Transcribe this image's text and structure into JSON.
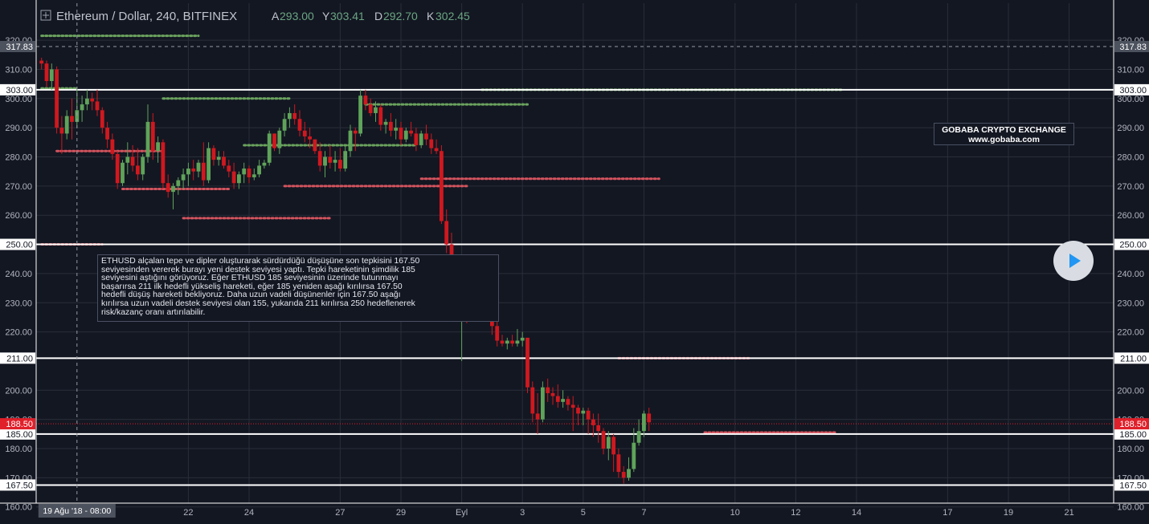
{
  "header": {
    "symbol": "Ethereum / Dollar, 240, BITFINEX",
    "open_label": "A",
    "open_value": "293.00",
    "high_label": "Y",
    "high_value": "303.41",
    "low_label": "D",
    "low_value": "292.70",
    "close_label": "K",
    "close_value": "302.45",
    "icon": "expand-plus-icon"
  },
  "annotation": {
    "text": "ETHUSD alçalan tepe ve dipler oluşturarak sürdürdüğü düşüşüne son tepkisini 167.50\nseviyesinden vererek burayı yeni destek seviyesi yaptı. Tepki hareketinin şimdilik 185\nseviyesini aştığını görüyoruz. Eğer ETHUSD 185 seviyesinin üzerinde tutunmayı\nbaşarırsa 211 ilk hedefli yükseliş hareketi, eğer 185 yeniden aşağı kırılırsa 167.50\nhedefli düşüş hareketi bekliyoruz. Daha uzun vadeli düşünenler için 167.50 aşağı\nkırılırsa uzun vadeli destek seviyesi olan 155, yukarıda 211 kırılırsa 250 hedeflenerek\nrisk/kazanç oranı artırılabilir."
  },
  "watermark": {
    "line1": "GOBABA CRYPTO EXCHANGE",
    "line2": "www.gobaba.com"
  },
  "play_button": {
    "icon": "play-icon"
  },
  "crosshair": {
    "x_label": "19 Ağu '18 - 08:00",
    "y_label": "317.83",
    "y_value": 317.83
  },
  "chart_data": {
    "type": "candlestick",
    "ylim": [
      157,
      324
    ],
    "ticks_y": [
      {
        "value": 320,
        "label": "320.00"
      },
      {
        "value": 310,
        "label": "310.00"
      },
      {
        "value": 300,
        "label": "300.00"
      },
      {
        "value": 290,
        "label": "290.00"
      },
      {
        "value": 280,
        "label": "280.00"
      },
      {
        "value": 270,
        "label": "270.00"
      },
      {
        "value": 260,
        "label": "260.00"
      },
      {
        "value": 240,
        "label": "240.00"
      },
      {
        "value": 230,
        "label": "230.00"
      },
      {
        "value": 220,
        "label": "220.00"
      },
      {
        "value": 200,
        "label": "200.00"
      },
      {
        "value": 190,
        "label": "190.00"
      },
      {
        "value": 180,
        "label": "180.00"
      },
      {
        "value": 170,
        "label": "170.00"
      },
      {
        "value": 160,
        "label": "160.00"
      }
    ],
    "ticks_x": [
      {
        "label": "22",
        "index": 35
      },
      {
        "label": "24",
        "index": 47
      },
      {
        "label": "27",
        "index": 65
      },
      {
        "label": "29",
        "index": 77
      },
      {
        "label": "Eyl",
        "index": 89
      },
      {
        "label": "3",
        "index": 101
      },
      {
        "label": "5",
        "index": 113
      },
      {
        "label": "7",
        "index": 125
      },
      {
        "label": "10",
        "index": 143
      },
      {
        "label": "12",
        "index": 155
      },
      {
        "label": "14",
        "index": 167
      },
      {
        "label": "17",
        "index": 185
      },
      {
        "label": "19",
        "index": 197
      },
      {
        "label": "21",
        "index": 209
      }
    ],
    "x_start_index": 6,
    "levels": [
      {
        "value": 303.0,
        "label": "303.00"
      },
      {
        "value": 250.0,
        "label": "250.00"
      },
      {
        "value": 211.0,
        "label": "211.00"
      },
      {
        "value": 185.0,
        "label": "185.00"
      },
      {
        "value": 167.5,
        "label": "167.50"
      }
    ],
    "last_price": {
      "value": 188.5,
      "label": "188.50",
      "color": "#e0202a"
    },
    "colors": {
      "up": "#5fa35a",
      "down": "#d0181f",
      "background": "#131722",
      "grid": "#2a2e39",
      "level": "#ffffff",
      "dot_green": "#6ba35e",
      "dot_red": "#d4545e"
    },
    "dotted_lines": [
      {
        "value": 321.5,
        "from": 6,
        "to": 37,
        "color": "green"
      },
      {
        "value": 303.5,
        "from": 6,
        "to": 13,
        "color": "green"
      },
      {
        "value": 282,
        "from": 9,
        "to": 30,
        "color": "red"
      },
      {
        "value": 300,
        "from": 30,
        "to": 55,
        "color": "green"
      },
      {
        "value": 269,
        "from": 22,
        "to": 43,
        "color": "red"
      },
      {
        "value": 259,
        "from": 34,
        "to": 63,
        "color": "red"
      },
      {
        "value": 284,
        "from": 46,
        "to": 80,
        "color": "green"
      },
      {
        "value": 270,
        "from": 54,
        "to": 90,
        "color": "red"
      },
      {
        "value": 298,
        "from": 70,
        "to": 102,
        "color": "green"
      },
      {
        "value": 272.5,
        "from": 81,
        "to": 128,
        "color": "red"
      },
      {
        "value": 303,
        "from": 93,
        "to": 164,
        "color": "green"
      },
      {
        "value": 250,
        "from": 6,
        "to": 18,
        "color": "red"
      },
      {
        "value": 211,
        "from": 120,
        "to": 146,
        "color": "red"
      },
      {
        "value": 185.5,
        "from": 137,
        "to": 163,
        "color": "red"
      }
    ],
    "candles": [
      [
        313,
        314,
        310,
        312
      ],
      [
        312,
        313,
        304,
        306
      ],
      [
        306,
        312,
        303,
        310
      ],
      [
        310,
        311,
        288,
        290
      ],
      [
        290,
        294,
        281,
        288
      ],
      [
        288,
        296,
        286,
        294
      ],
      [
        294,
        300,
        286,
        292
      ],
      [
        292,
        304,
        290,
        296
      ],
      [
        296,
        301,
        292,
        298
      ],
      [
        298,
        303,
        296,
        300
      ],
      [
        300,
        302,
        296,
        299
      ],
      [
        299,
        303,
        294,
        296
      ],
      [
        296,
        297,
        288,
        290
      ],
      [
        290,
        292,
        283,
        286
      ],
      [
        286,
        288,
        279,
        281
      ],
      [
        281,
        282,
        269,
        271
      ],
      [
        271,
        279,
        270,
        278
      ],
      [
        278,
        285,
        274,
        280
      ],
      [
        280,
        284,
        275,
        277
      ],
      [
        277,
        283,
        272,
        274
      ],
      [
        274,
        281,
        272,
        280
      ],
      [
        280,
        298,
        278,
        292
      ],
      [
        292,
        295,
        279,
        282
      ],
      [
        282,
        287,
        278,
        285
      ],
      [
        285,
        286,
        269,
        271
      ],
      [
        271,
        274,
        266,
        268
      ],
      [
        268,
        271,
        262,
        270
      ],
      [
        270,
        273,
        267,
        272
      ],
      [
        272,
        276,
        269,
        274
      ],
      [
        274,
        278,
        270,
        276
      ],
      [
        276,
        279,
        272,
        275
      ],
      [
        275,
        279,
        273,
        278
      ],
      [
        278,
        285,
        270,
        272
      ],
      [
        272,
        285,
        271,
        283
      ],
      [
        283,
        284,
        277,
        279
      ],
      [
        279,
        282,
        277,
        280
      ],
      [
        280,
        282,
        276,
        277
      ],
      [
        277,
        279,
        273,
        275
      ],
      [
        275,
        278,
        269,
        271
      ],
      [
        271,
        275,
        269,
        274
      ],
      [
        274,
        278,
        271,
        276
      ],
      [
        276,
        277,
        271,
        273
      ],
      [
        273,
        276,
        272,
        274
      ],
      [
        274,
        279,
        273,
        277
      ],
      [
        277,
        279,
        276,
        278
      ],
      [
        278,
        289,
        277,
        288
      ],
      [
        288,
        288,
        282,
        283
      ],
      [
        283,
        290,
        281,
        289
      ],
      [
        289,
        295,
        287,
        293
      ],
      [
        293,
        297,
        290,
        295
      ],
      [
        295,
        298,
        291,
        293
      ],
      [
        293,
        296,
        287,
        289
      ],
      [
        289,
        292,
        285,
        287
      ],
      [
        287,
        290,
        283,
        286
      ],
      [
        286,
        286,
        281,
        282
      ],
      [
        282,
        285,
        275,
        277
      ],
      [
        277,
        282,
        273,
        280
      ],
      [
        280,
        284,
        276,
        278
      ],
      [
        278,
        282,
        275,
        279
      ],
      [
        279,
        283,
        275,
        276
      ],
      [
        276,
        284,
        275,
        282
      ],
      [
        282,
        291,
        280,
        289
      ],
      [
        289,
        290,
        282,
        288
      ],
      [
        288,
        303,
        287,
        301
      ],
      [
        301,
        303,
        296,
        298
      ],
      [
        298,
        300,
        294,
        295
      ],
      [
        295,
        299,
        292,
        297
      ],
      [
        297,
        298,
        289,
        291
      ],
      [
        291,
        293,
        288,
        292
      ],
      [
        292,
        295,
        287,
        289
      ],
      [
        289,
        293,
        286,
        290
      ],
      [
        290,
        292,
        284,
        286
      ],
      [
        286,
        290,
        285,
        289
      ],
      [
        289,
        292,
        287,
        288
      ],
      [
        288,
        290,
        282,
        284
      ],
      [
        284,
        289,
        283,
        288
      ],
      [
        288,
        291,
        284,
        286
      ],
      [
        286,
        288,
        281,
        283
      ],
      [
        283,
        286,
        281,
        282
      ],
      [
        282,
        284,
        257,
        258
      ],
      [
        258,
        262,
        247,
        250
      ],
      [
        250,
        254,
        240,
        242
      ],
      [
        242,
        244,
        225,
        228
      ],
      [
        228,
        232,
        210,
        228
      ],
      [
        228,
        231,
        223,
        226
      ],
      [
        226,
        232,
        224,
        229
      ],
      [
        229,
        230,
        226,
        227
      ],
      [
        227,
        234,
        224,
        230
      ],
      [
        230,
        233,
        225,
        227
      ],
      [
        227,
        231,
        219,
        222
      ],
      [
        222,
        224,
        215,
        217
      ],
      [
        217,
        219,
        215,
        216
      ],
      [
        216,
        218,
        214,
        217
      ],
      [
        217,
        219,
        215,
        216
      ],
      [
        216,
        221,
        215,
        217
      ],
      [
        217,
        220,
        215,
        218
      ],
      [
        218,
        218,
        199,
        201
      ],
      [
        201,
        203,
        189,
        192
      ],
      [
        192,
        199,
        185,
        190
      ],
      [
        190,
        203,
        189,
        201
      ],
      [
        201,
        204,
        196,
        199
      ],
      [
        199,
        201,
        195,
        198
      ],
      [
        198,
        202,
        194,
        196
      ],
      [
        196,
        200,
        194,
        197
      ],
      [
        197,
        198,
        193,
        195
      ],
      [
        195,
        198,
        186,
        194
      ],
      [
        194,
        195,
        188,
        192
      ],
      [
        192,
        194,
        188,
        193
      ],
      [
        193,
        194,
        185,
        190
      ],
      [
        190,
        192,
        184,
        188
      ],
      [
        188,
        192,
        182,
        186
      ],
      [
        186,
        187,
        178,
        180
      ],
      [
        180,
        186,
        176,
        184
      ],
      [
        184,
        185,
        172,
        178
      ],
      [
        178,
        180,
        170,
        172
      ],
      [
        172,
        174,
        168,
        170
      ],
      [
        170,
        177,
        169,
        173
      ],
      [
        173,
        187,
        172,
        182
      ],
      [
        182,
        190,
        181,
        186
      ],
      [
        186,
        193,
        184,
        192
      ],
      [
        192,
        194,
        186,
        189
      ]
    ]
  }
}
